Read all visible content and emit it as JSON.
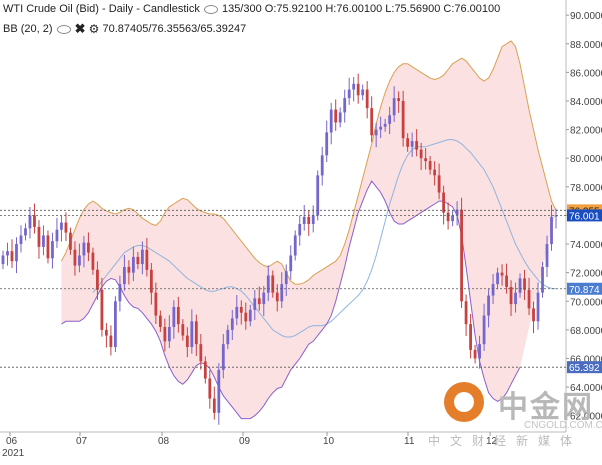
{
  "header": {
    "instrument": "WTI Crude Oil (Bid) - Daily - Candlestick",
    "count": "135/300",
    "ohlc": "O:75.92100 H:76.00100 L:75.56900 C:76.00100",
    "bb_label": "BB (20, 2)",
    "bb_values": "70.87405/76.35563/65.39247"
  },
  "colors": {
    "up": "#7466cc",
    "down": "#c94040",
    "band_fill": "#fbe1e1",
    "upper_band": "#d9a050",
    "middle_band": "#8fb4e0",
    "lower_band": "#8a5fcc",
    "price_tag_orange": "#f2a040",
    "price_tag_blue": "#1a4dbf",
    "price_tag_lightblue": "#4a7cd0",
    "price_tag_lower": "#4a6cc0"
  },
  "chart_data": {
    "type": "candlestick",
    "x_labels": [
      "06",
      "07",
      "08",
      "09",
      "10",
      "11",
      "12"
    ],
    "year_label": "2021",
    "y_ticks": [
      "62.0000",
      "64.0000",
      "66.0000",
      "68.0000",
      "70.0000",
      "72.0000",
      "74.0000",
      "76.0000",
      "78.0000",
      "80.0000",
      "82.0000",
      "84.0000",
      "86.0000",
      "88.0000",
      "90.0000"
    ],
    "ylim": [
      61.0,
      90.5
    ],
    "price_tags": [
      {
        "label": "76.355",
        "value": 76.356,
        "style": "orange"
      },
      {
        "label": "76.001",
        "value": 76.001,
        "style": "blue"
      },
      {
        "label": "70.874",
        "value": 70.874,
        "style": "lightblue"
      },
      {
        "label": "65.392",
        "value": 65.392,
        "style": "lower"
      }
    ],
    "candles_close": [
      73.2,
      73.5,
      72.8,
      74.0,
      74.6,
      75.1,
      76.0,
      75.2,
      73.8,
      74.6,
      73.0,
      74.2,
      75.0,
      75.5,
      74.8,
      73.6,
      72.5,
      73.2,
      74.1,
      73.4,
      72.2,
      70.8,
      68.0,
      67.6,
      66.8,
      70.0,
      71.2,
      72.4,
      72.0,
      73.1,
      72.6,
      73.6,
      72.2,
      70.6,
      69.0,
      68.2,
      67.2,
      68.2,
      69.6,
      68.4,
      67.6,
      66.8,
      68.6,
      67.0,
      65.8,
      64.6,
      63.2,
      62.2,
      65.2,
      67.0,
      68.0,
      68.8,
      69.6,
      69.2,
      68.6,
      69.4,
      70.2,
      69.8,
      70.6,
      71.8,
      70.6,
      70.0,
      71.2,
      72.1,
      73.2,
      74.6,
      75.4,
      75.9,
      75.4,
      76.0,
      78.8,
      80.2,
      81.8,
      83.4,
      82.5,
      83.2,
      84.2,
      84.8,
      85.2,
      84.4,
      84.8,
      83.5,
      81.6,
      82.0,
      82.2,
      82.4,
      83.0,
      84.2,
      84.0,
      81.4,
      80.8,
      81.2,
      80.6,
      80.0,
      79.8,
      79.2,
      78.8,
      77.6,
      76.2,
      75.6,
      76.0,
      76.4,
      70.0,
      68.4,
      66.6,
      66.0,
      67.0,
      69.0,
      70.4,
      71.2,
      72.0,
      71.8,
      71.0,
      69.8,
      70.6,
      71.6,
      70.8,
      69.5,
      68.6,
      70.6,
      72.4,
      74.0,
      75.9,
      76.0
    ],
    "candles_open": [
      72.6,
      73.2,
      73.5,
      72.8,
      74.0,
      74.6,
      75.1,
      76.0,
      75.2,
      73.8,
      74.6,
      73.0,
      74.2,
      75.0,
      75.5,
      74.8,
      73.6,
      72.5,
      73.2,
      74.1,
      73.4,
      72.2,
      70.8,
      68.0,
      67.6,
      66.8,
      70.0,
      71.2,
      72.4,
      72.0,
      73.1,
      72.6,
      73.6,
      72.2,
      70.6,
      69.0,
      68.2,
      67.2,
      68.2,
      69.6,
      68.4,
      67.6,
      66.8,
      68.6,
      67.0,
      65.8,
      64.6,
      63.2,
      62.2,
      65.2,
      67.0,
      68.0,
      68.8,
      69.6,
      69.2,
      68.6,
      69.4,
      70.2,
      69.8,
      70.6,
      71.8,
      70.6,
      70.0,
      71.2,
      72.1,
      73.2,
      74.6,
      75.4,
      75.9,
      75.4,
      76.0,
      78.8,
      80.2,
      81.8,
      83.4,
      82.5,
      83.2,
      84.2,
      84.8,
      85.2,
      84.4,
      84.8,
      83.5,
      81.6,
      82.0,
      82.2,
      82.4,
      83.0,
      84.2,
      84.0,
      81.4,
      80.8,
      81.2,
      80.6,
      80.0,
      79.8,
      79.2,
      78.8,
      77.6,
      76.2,
      75.6,
      76.0,
      76.4,
      70.0,
      68.4,
      66.6,
      66.0,
      67.0,
      69.0,
      70.4,
      71.2,
      72.0,
      71.8,
      71.0,
      69.8,
      70.6,
      71.6,
      70.8,
      69.5,
      68.6,
      70.6,
      72.4,
      74.0,
      75.92
    ],
    "upper_band": [
      72.8,
      73.4,
      74.2,
      75.0,
      75.8,
      76.4,
      76.8,
      77.0,
      76.8,
      76.5,
      76.3,
      76.2,
      76.1,
      76.2,
      76.4,
      76.5,
      76.4,
      76.1,
      75.8,
      75.6,
      75.4,
      75.3,
      75.6,
      76.2,
      76.6,
      76.8,
      77.0,
      77.2,
      77.1,
      76.8,
      76.5,
      76.3,
      76.2,
      76.1,
      76.1,
      76.0,
      75.8,
      75.4,
      75.0,
      74.6,
      74.2,
      73.8,
      73.4,
      73.0,
      72.7,
      72.5,
      72.4,
      72.6,
      72.8,
      72.6,
      72.0,
      71.4,
      71.2,
      71.2,
      71.3,
      71.5,
      71.8,
      72.0,
      72.2,
      72.4,
      72.6,
      72.8,
      73.2,
      74.0,
      75.0,
      76.2,
      77.4,
      78.6,
      79.8,
      81.0,
      82.4,
      83.6,
      84.6,
      85.4,
      86.0,
      86.4,
      86.6,
      86.6,
      86.4,
      86.2,
      86.0,
      85.8,
      85.6,
      85.5,
      85.6,
      85.8,
      86.2,
      86.6,
      86.8,
      87.0,
      86.8,
      86.4,
      86.0,
      85.6,
      85.4,
      85.6,
      86.2,
      87.0,
      87.8,
      88.0,
      88.2,
      87.8,
      86.6,
      85.0,
      83.4,
      82.0,
      80.6,
      79.4,
      78.2,
      77.0,
      76.36
    ],
    "middle_band": [
      70.6,
      71.0,
      71.4,
      71.8,
      72.2,
      72.6,
      73.0,
      73.4,
      73.6,
      73.8,
      73.9,
      73.9,
      73.8,
      73.6,
      73.4,
      73.2,
      73.0,
      72.8,
      72.5,
      72.2,
      71.9,
      71.6,
      71.4,
      71.2,
      71.0,
      70.8,
      70.7,
      70.7,
      70.8,
      70.9,
      71.0,
      71.0,
      70.9,
      70.7,
      70.4,
      70.0,
      69.6,
      69.2,
      68.8,
      68.4,
      68.0,
      67.8,
      67.6,
      67.5,
      67.5,
      67.6,
      67.8,
      68.0,
      68.2,
      68.3,
      68.3,
      68.3,
      68.4,
      68.6,
      68.9,
      69.2,
      69.5,
      69.8,
      70.1,
      70.4,
      70.8,
      71.4,
      72.2,
      73.2,
      74.4,
      75.6,
      76.8,
      77.8,
      78.8,
      79.6,
      80.2,
      80.6,
      80.8,
      80.8,
      80.8,
      80.9,
      81.0,
      81.1,
      81.2,
      81.3,
      81.3,
      81.2,
      81.0,
      80.7,
      80.4,
      80.0,
      79.6,
      79.2,
      78.6,
      78.0,
      77.2,
      76.4,
      75.6,
      74.8,
      74.0,
      73.4,
      72.8,
      72.3,
      71.9,
      71.5,
      71.2,
      71.0,
      70.9,
      70.874
    ],
    "lower_band": [
      68.4,
      68.6,
      68.6,
      68.6,
      68.6,
      68.8,
      69.2,
      69.8,
      70.4,
      71.0,
      71.4,
      71.6,
      71.5,
      71.0,
      70.4,
      69.9,
      69.6,
      69.5,
      69.2,
      68.8,
      68.4,
      67.9,
      67.2,
      66.2,
      65.4,
      64.8,
      64.4,
      64.2,
      64.5,
      65.0,
      65.5,
      65.7,
      65.6,
      65.3,
      64.7,
      64.0,
      63.4,
      63.0,
      62.6,
      62.2,
      61.8,
      61.8,
      61.8,
      62.0,
      62.3,
      62.7,
      63.2,
      63.6,
      63.9,
      64.0,
      64.6,
      65.2,
      65.6,
      66.0,
      66.5,
      67.0,
      67.2,
      67.6,
      68.0,
      68.4,
      69.0,
      70.0,
      71.2,
      72.4,
      73.8,
      75.0,
      76.2,
      77.0,
      77.8,
      78.4,
      78.0,
      77.6,
      77.0,
      76.2,
      75.6,
      75.4,
      75.4,
      75.6,
      75.8,
      76.0,
      76.2,
      76.4,
      76.6,
      76.8,
      77.0,
      77.0,
      76.8,
      76.6,
      76.0,
      74.6,
      72.4,
      70.0,
      67.6,
      65.8,
      64.6,
      63.6,
      63.2,
      63.0,
      63.2,
      63.6,
      64.2,
      64.8,
      65.39
    ]
  },
  "watermark": {
    "cn": "中金网",
    "en": "CNGOLD.COM.CN",
    "sub": "中文财经新媒体"
  }
}
